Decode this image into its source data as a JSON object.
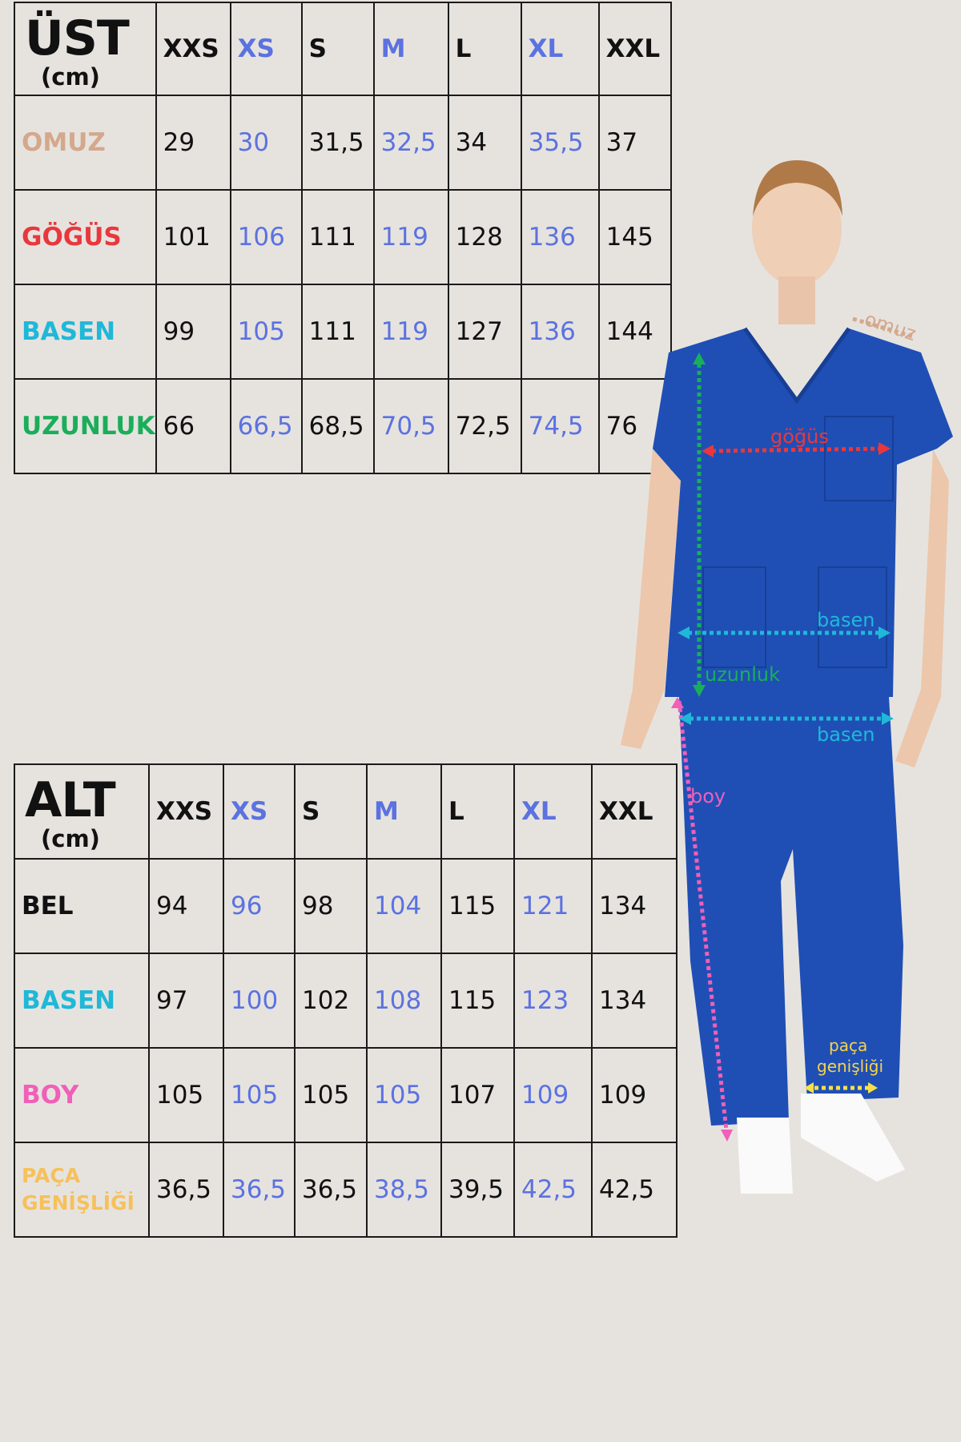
{
  "sizes": [
    "XXS",
    "XS",
    "S",
    "M",
    "L",
    "XL",
    "XXL"
  ],
  "top_table": {
    "title": "ÜST",
    "unit": "(cm)",
    "rows": [
      {
        "label": "OMUZ",
        "color": "#d4a88c",
        "values": [
          "29",
          "30",
          "31,5",
          "32,5",
          "34",
          "35,5",
          "37"
        ]
      },
      {
        "label": "GÖĞÜS",
        "color": "#e8383d",
        "values": [
          "101",
          "106",
          "111",
          "119",
          "128",
          "136",
          "145"
        ]
      },
      {
        "label": "BASEN",
        "color": "#1fb8d8",
        "values": [
          "99",
          "105",
          "111",
          "119",
          "127",
          "136",
          "144"
        ]
      },
      {
        "label": "UZUNLUK",
        "color": "#1aae5a",
        "values": [
          "66",
          "66,5",
          "68,5",
          "70,5",
          "72,5",
          "74,5",
          "76"
        ]
      }
    ]
  },
  "bottom_table": {
    "title": "ALT",
    "unit": "(cm)",
    "rows": [
      {
        "label": "BEL",
        "color": "#111111",
        "values": [
          "94",
          "96",
          "98",
          "104",
          "115",
          "121",
          "134"
        ]
      },
      {
        "label": "BASEN",
        "color": "#1fb8d8",
        "values": [
          "97",
          "100",
          "102",
          "108",
          "115",
          "123",
          "134"
        ]
      },
      {
        "label": "BOY",
        "color": "#f05fb8",
        "values": [
          "105",
          "105",
          "105",
          "105",
          "107",
          "109",
          "109"
        ]
      },
      {
        "label": "PAÇA GENİŞLİĞİ",
        "label_lines": [
          "PAÇA",
          "GENİŞLİĞİ"
        ],
        "color": "#f7c05a",
        "values": [
          "36,5",
          "36,5",
          "36,5",
          "38,5",
          "39,5",
          "42,5",
          "42,5"
        ]
      }
    ]
  },
  "colors": {
    "alt_size": "#5b72e0",
    "normal_size": "#111111",
    "background": "#e6e3df",
    "scrubs": "#1f4fb5"
  },
  "figure_labels": {
    "omuz": "omuz",
    "gogus": "göğüs",
    "basen_top": "basen",
    "uzunluk": "uzunluk",
    "basen_bottom": "basen",
    "boy": "boy",
    "paca_1": "paça",
    "paca_2": "genişliği"
  }
}
